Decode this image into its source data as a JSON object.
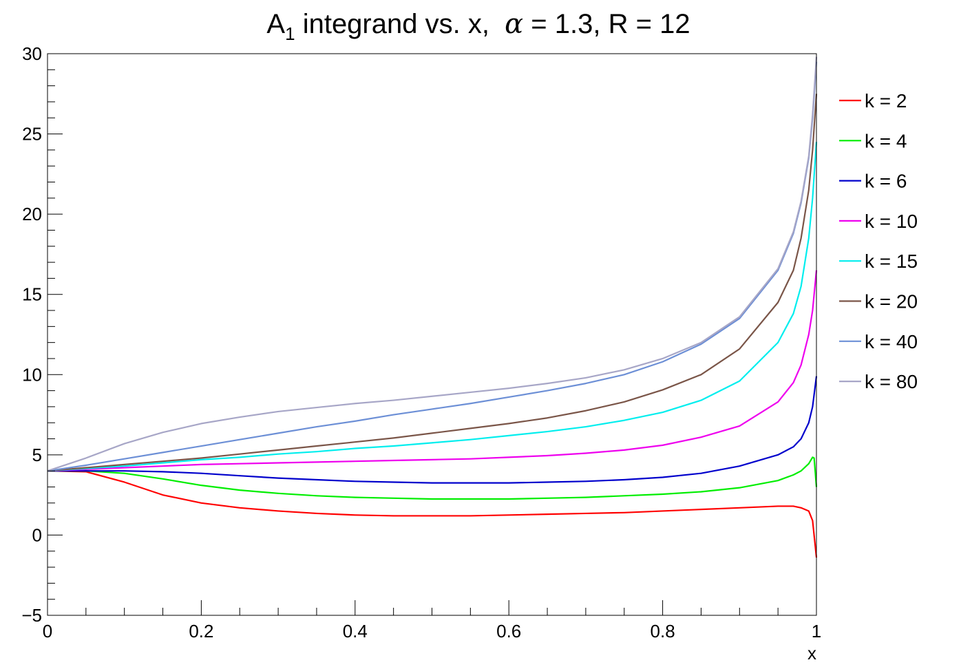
{
  "chart_data": {
    "type": "line",
    "title": {
      "main": "A",
      "subscript": "1",
      "rest": " integrand vs. x,  ",
      "alpha_symbol": "α",
      "params": " = 1.3, R = 12"
    },
    "xlabel": "x",
    "ylabel": "",
    "xlim": [
      0,
      1
    ],
    "ylim": [
      -5,
      30
    ],
    "x_ticks": [
      0,
      0.2,
      0.4,
      0.6,
      0.8,
      1
    ],
    "x_tick_labels": [
      "0",
      "0.2",
      "0.4",
      "0.6",
      "0.8",
      "1"
    ],
    "y_ticks": [
      -5,
      0,
      5,
      10,
      15,
      20,
      25,
      30
    ],
    "y_tick_labels": [
      "−5",
      "0",
      "5",
      "10",
      "15",
      "20",
      "25",
      "30"
    ],
    "grid": false,
    "legend_position": "right",
    "series": [
      {
        "name": "k = 2",
        "color": "#ff0000",
        "x": [
          0,
          0.05,
          0.1,
          0.15,
          0.2,
          0.25,
          0.3,
          0.35,
          0.4,
          0.45,
          0.5,
          0.55,
          0.6,
          0.65,
          0.7,
          0.75,
          0.8,
          0.85,
          0.9,
          0.95,
          0.97,
          0.98,
          0.99,
          0.995,
          1.0
        ],
        "y": [
          4.0,
          3.95,
          3.3,
          2.5,
          2.0,
          1.7,
          1.5,
          1.35,
          1.25,
          1.2,
          1.2,
          1.2,
          1.25,
          1.3,
          1.35,
          1.4,
          1.5,
          1.6,
          1.7,
          1.8,
          1.8,
          1.7,
          1.5,
          0.9,
          -1.4
        ]
      },
      {
        "name": "k = 4",
        "color": "#00ee00",
        "x": [
          0,
          0.05,
          0.1,
          0.15,
          0.2,
          0.25,
          0.3,
          0.35,
          0.4,
          0.45,
          0.5,
          0.55,
          0.6,
          0.65,
          0.7,
          0.75,
          0.8,
          0.85,
          0.9,
          0.95,
          0.97,
          0.98,
          0.99,
          0.995,
          0.997,
          1.0
        ],
        "y": [
          4.0,
          4.0,
          3.85,
          3.5,
          3.1,
          2.8,
          2.6,
          2.45,
          2.35,
          2.3,
          2.25,
          2.25,
          2.25,
          2.3,
          2.35,
          2.45,
          2.55,
          2.7,
          2.95,
          3.4,
          3.75,
          4.0,
          4.45,
          4.85,
          4.8,
          3.0
        ]
      },
      {
        "name": "k = 6",
        "color": "#0000cc",
        "x": [
          0,
          0.05,
          0.1,
          0.15,
          0.2,
          0.25,
          0.3,
          0.35,
          0.4,
          0.45,
          0.5,
          0.55,
          0.6,
          0.65,
          0.7,
          0.75,
          0.8,
          0.85,
          0.9,
          0.95,
          0.97,
          0.98,
          0.99,
          0.995,
          1.0
        ],
        "y": [
          4.0,
          4.0,
          4.0,
          3.95,
          3.85,
          3.7,
          3.55,
          3.45,
          3.35,
          3.3,
          3.25,
          3.25,
          3.25,
          3.3,
          3.35,
          3.45,
          3.6,
          3.85,
          4.3,
          5.0,
          5.5,
          6.0,
          7.0,
          8.0,
          9.9
        ]
      },
      {
        "name": "k = 10",
        "color": "#ee00ee",
        "x": [
          0,
          0.05,
          0.1,
          0.15,
          0.2,
          0.25,
          0.3,
          0.35,
          0.4,
          0.45,
          0.5,
          0.55,
          0.6,
          0.65,
          0.7,
          0.75,
          0.8,
          0.85,
          0.9,
          0.95,
          0.97,
          0.98,
          0.99,
          0.995,
          1.0
        ],
        "y": [
          4.0,
          4.1,
          4.2,
          4.3,
          4.4,
          4.45,
          4.5,
          4.55,
          4.6,
          4.65,
          4.7,
          4.75,
          4.85,
          4.95,
          5.1,
          5.3,
          5.6,
          6.1,
          6.8,
          8.3,
          9.5,
          10.6,
          12.5,
          14.0,
          16.5
        ]
      },
      {
        "name": "k = 15",
        "color": "#00eeee",
        "x": [
          0,
          0.05,
          0.1,
          0.15,
          0.2,
          0.25,
          0.3,
          0.35,
          0.4,
          0.45,
          0.5,
          0.55,
          0.6,
          0.65,
          0.7,
          0.75,
          0.8,
          0.85,
          0.9,
          0.95,
          0.97,
          0.98,
          0.99,
          0.995,
          1.0
        ],
        "y": [
          4.0,
          4.15,
          4.3,
          4.5,
          4.7,
          4.85,
          5.05,
          5.2,
          5.4,
          5.55,
          5.75,
          5.95,
          6.2,
          6.45,
          6.75,
          7.15,
          7.65,
          8.4,
          9.6,
          12.0,
          13.8,
          15.5,
          18.5,
          21.0,
          24.5
        ]
      },
      {
        "name": "k = 20",
        "color": "#7a5548",
        "x": [
          0,
          0.05,
          0.1,
          0.15,
          0.2,
          0.25,
          0.3,
          0.35,
          0.4,
          0.45,
          0.5,
          0.55,
          0.6,
          0.65,
          0.7,
          0.75,
          0.8,
          0.85,
          0.9,
          0.95,
          0.97,
          0.98,
          0.99,
          0.995,
          1.0
        ],
        "y": [
          4.0,
          4.2,
          4.4,
          4.6,
          4.8,
          5.05,
          5.3,
          5.55,
          5.8,
          6.05,
          6.35,
          6.65,
          6.95,
          7.3,
          7.75,
          8.3,
          9.05,
          10.0,
          11.6,
          14.5,
          16.5,
          18.5,
          21.5,
          24.0,
          27.5
        ]
      },
      {
        "name": "k = 40",
        "color": "#6c8fd6",
        "x": [
          0,
          0.05,
          0.1,
          0.15,
          0.2,
          0.25,
          0.3,
          0.35,
          0.4,
          0.45,
          0.5,
          0.55,
          0.6,
          0.65,
          0.7,
          0.75,
          0.8,
          0.85,
          0.9,
          0.95,
          0.97,
          0.98,
          0.99,
          0.995,
          1.0
        ],
        "y": [
          4.0,
          4.35,
          4.75,
          5.15,
          5.55,
          5.95,
          6.35,
          6.75,
          7.1,
          7.5,
          7.85,
          8.2,
          8.6,
          9.0,
          9.45,
          10.0,
          10.8,
          11.9,
          13.5,
          16.5,
          18.8,
          20.7,
          23.5,
          26.0,
          29.5
        ]
      },
      {
        "name": "k = 80",
        "color": "#a7a6c7",
        "x": [
          0,
          0.05,
          0.1,
          0.15,
          0.2,
          0.25,
          0.3,
          0.35,
          0.4,
          0.45,
          0.5,
          0.55,
          0.6,
          0.65,
          0.7,
          0.75,
          0.8,
          0.85,
          0.9,
          0.95,
          0.97,
          0.98,
          0.99,
          0.995,
          1.0
        ],
        "y": [
          4.0,
          4.8,
          5.7,
          6.4,
          6.95,
          7.35,
          7.7,
          7.95,
          8.2,
          8.4,
          8.65,
          8.9,
          9.15,
          9.45,
          9.8,
          10.3,
          11.0,
          12.0,
          13.6,
          16.6,
          18.9,
          20.8,
          23.6,
          26.2,
          29.8
        ]
      }
    ]
  }
}
